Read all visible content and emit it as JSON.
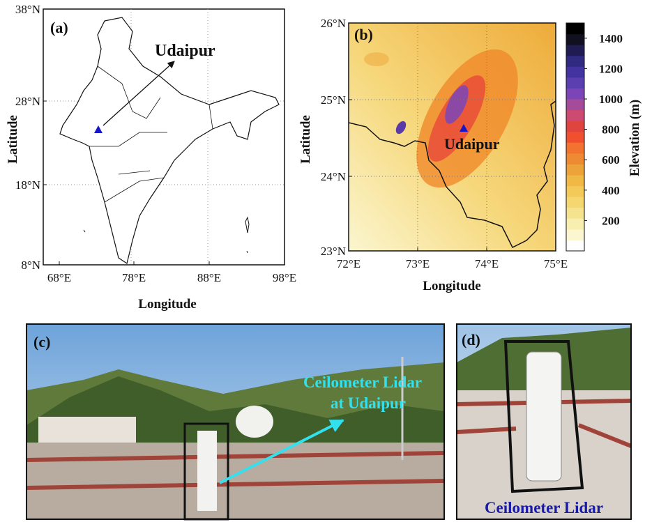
{
  "panel_a": {
    "label": "(a)",
    "annotation": "Udaipur",
    "x_label": "Longitude",
    "y_label": "Latitude",
    "xticks": [
      "68°E",
      "78°E",
      "88°E",
      "98°E"
    ],
    "yticks": [
      "38°N",
      "28°N",
      "18°N",
      "8°N"
    ]
  },
  "panel_b": {
    "label": "(b)",
    "annotation": "Udaipur",
    "x_label": "Longitude",
    "y_label": "Latitude",
    "xticks": [
      "72°E",
      "73°E",
      "74°E",
      "75°E"
    ],
    "yticks": [
      "26°N",
      "25°N",
      "24°N",
      "23°N"
    ],
    "colorbar": {
      "label": "Elevation (m)",
      "ticks": [
        200,
        400,
        600,
        800,
        1000,
        1200,
        1400
      ]
    }
  },
  "panel_c": {
    "label": "(c)",
    "annotation": [
      "Ceilometer Lidar",
      "at Udaipur"
    ]
  },
  "panel_d": {
    "label": "(d)",
    "caption": "Ceilometer Lidar"
  }
}
